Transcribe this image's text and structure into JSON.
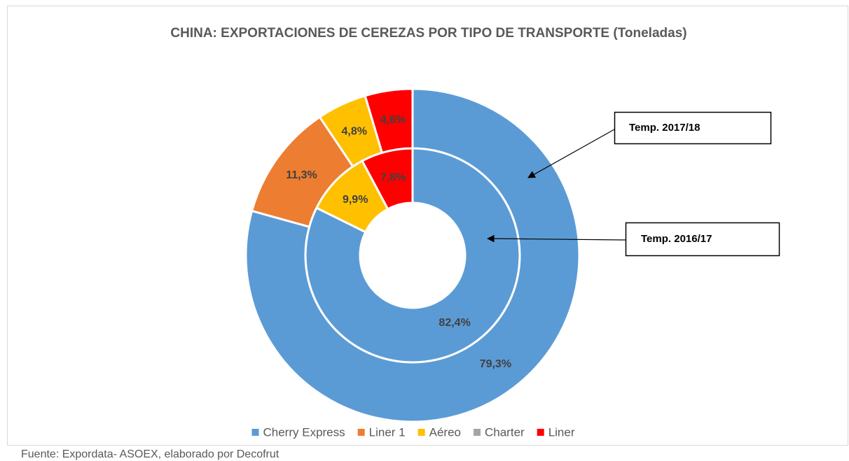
{
  "chart_data": {
    "type": "donut",
    "title": "CHINA: EXPORTACIONES DE CEREZAS POR TIPO DE TRANSPORTE (Toneladas)",
    "categories": [
      "Cherry Express",
      "Liner 1",
      "Aéreo",
      "Charter",
      "Liner"
    ],
    "colors": [
      "#5b9bd5",
      "#ed7d31",
      "#ffc000",
      "#a5a5a5",
      "#ff0000"
    ],
    "series": [
      {
        "name": "Temp. 2016/17",
        "values": [
          82.4,
          0,
          9.9,
          0,
          7.8
        ],
        "value_labels": [
          "82,4%",
          null,
          "9,9%",
          null,
          "7,8%"
        ]
      },
      {
        "name": "Temp. 2017/18",
        "values": [
          79.3,
          11.3,
          4.8,
          0,
          4.6
        ],
        "value_labels": [
          "79,3%",
          "11,3%",
          "4,8%",
          null,
          "4,6%"
        ]
      }
    ],
    "source": "Fuente: Expordata- ASOEX, elaborado por Decofrut"
  }
}
